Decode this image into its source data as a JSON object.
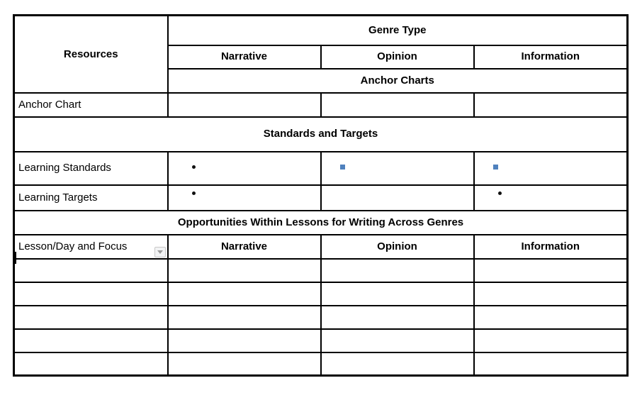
{
  "colors": {
    "border": "#000000",
    "text": "#000000",
    "bullet_blue": "#4f81bd",
    "bullet_black": "#111111",
    "dropdown_bg": "#f2f3f4",
    "dropdown_border": "#c8c8c8",
    "dropdown_arrow": "#9a9a9a"
  },
  "table": {
    "resources_header": "Resources",
    "genre_type_header": "Genre Type",
    "genre_columns": [
      "Narrative",
      "Opinion",
      "Information"
    ],
    "anchor_charts_band": "Anchor Charts",
    "anchor_chart_row_label": "Anchor Chart",
    "standards_band": "Standards and Targets",
    "learning_standards_label": "Learning Standards",
    "learning_targets_label": "Learning Targets",
    "opportunities_band": "Opportunities Within Lessons for Writing Across Genres",
    "lesson_day_label": "Lesson/Day and Focus",
    "lesson_columns": [
      "Narrative",
      "Opinion",
      "Information"
    ],
    "empty_rows": 5
  },
  "markers": {
    "learning_standards": {
      "narrative": "disc-black",
      "opinion": "square-blue",
      "information": "square-blue"
    },
    "learning_targets": {
      "narrative": "disc-black-mid",
      "opinion": "none",
      "information": "disc-black-mid"
    }
  },
  "editor": {
    "caret_visible": true,
    "cell_dropdown_visible": true
  }
}
